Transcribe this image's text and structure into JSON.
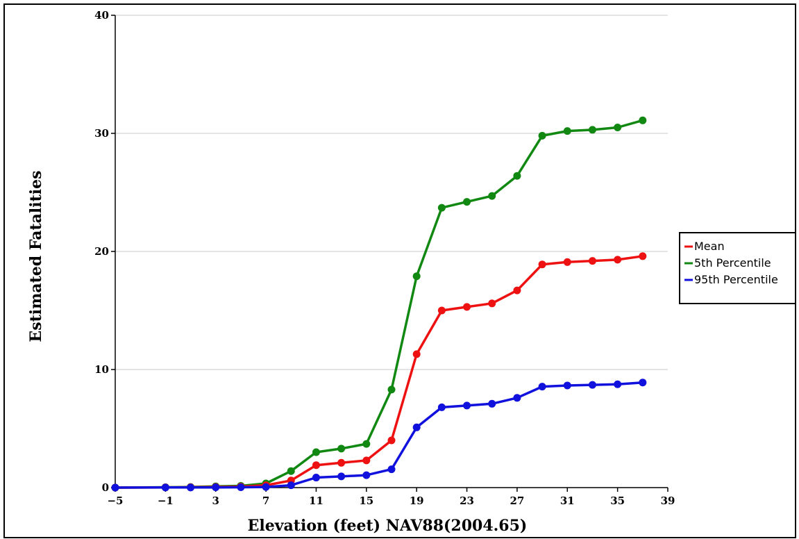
{
  "chart_data": {
    "type": "line",
    "xlabel": "Elevation (feet) NAV88(2004.65)",
    "ylabel": "Estimated Fatalities",
    "xlim": [
      -5,
      39
    ],
    "ylim": [
      0,
      40
    ],
    "x_ticks": [
      "−5",
      "−1",
      "3",
      "7",
      "11",
      "15",
      "19",
      "23",
      "27",
      "31",
      "35",
      "39"
    ],
    "x_tick_values": [
      -5,
      -1,
      3,
      7,
      11,
      15,
      19,
      23,
      27,
      31,
      35,
      39
    ],
    "y_ticks": [
      "0",
      "10",
      "20",
      "30",
      "40"
    ],
    "y_tick_values": [
      0,
      10,
      20,
      30,
      40
    ],
    "grid": "horizontal",
    "legend_position": "right",
    "x": [
      -5,
      -1,
      1,
      3,
      5,
      7,
      9,
      11,
      13,
      15,
      17,
      19,
      21,
      23,
      25,
      27,
      29,
      31,
      33,
      35,
      37
    ],
    "series": [
      {
        "name": "Mean",
        "color": "#ee1111",
        "values": [
          0,
          0.02,
          0.03,
          0.05,
          0.08,
          0.2,
          0.6,
          1.9,
          2.1,
          2.3,
          4.0,
          11.3,
          15.0,
          15.3,
          15.6,
          16.7,
          18.9,
          19.1,
          19.2,
          19.3,
          19.6
        ]
      },
      {
        "name": "5th Percentile",
        "color": "#118811",
        "values": [
          0,
          0.03,
          0.05,
          0.1,
          0.15,
          0.35,
          1.4,
          3.0,
          3.3,
          3.7,
          8.3,
          17.9,
          23.7,
          24.2,
          24.7,
          26.4,
          29.8,
          30.2,
          30.3,
          30.5,
          31.1
        ]
      },
      {
        "name": "95th Percentile",
        "color": "#1111dd",
        "values": [
          0,
          0.01,
          0.01,
          0.02,
          0.03,
          0.05,
          0.2,
          0.85,
          0.95,
          1.05,
          1.55,
          5.1,
          6.8,
          6.95,
          7.1,
          7.6,
          8.55,
          8.65,
          8.7,
          8.75,
          8.9
        ]
      }
    ]
  }
}
